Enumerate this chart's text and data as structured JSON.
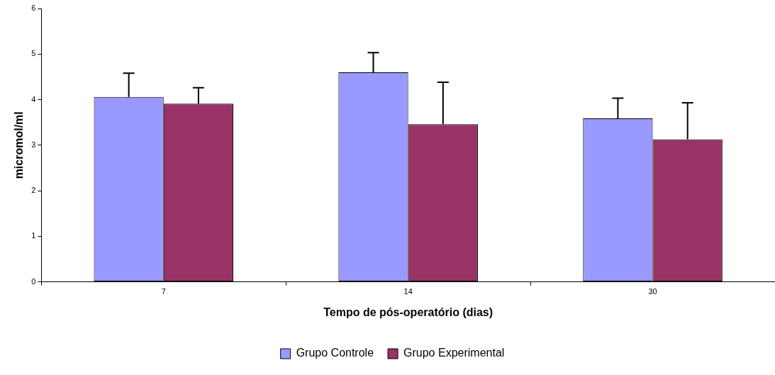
{
  "chart_data": {
    "type": "bar",
    "xlabel": "Tempo de pós-operatório (dias)",
    "ylabel": "micromol/ml",
    "categories": [
      "7",
      "14",
      "30"
    ],
    "series": [
      {
        "name": "Grupo Controle",
        "color": "#9999ff",
        "values": [
          4.06,
          4.6,
          3.59
        ],
        "errors": [
          0.52,
          0.43,
          0.44
        ]
      },
      {
        "name": "Grupo Experimental",
        "color": "#993366",
        "values": [
          3.91,
          3.46,
          3.13
        ],
        "errors": [
          0.35,
          0.92,
          0.8
        ]
      }
    ],
    "ylim": [
      0,
      6
    ],
    "yticks": [
      0,
      1,
      2,
      3,
      4,
      5,
      6
    ],
    "grid": false,
    "legend": "bottom"
  }
}
